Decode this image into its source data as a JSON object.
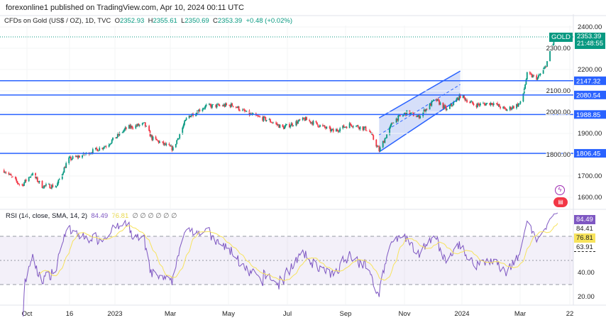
{
  "header": {
    "published": "forexonline1 published on TradingView.com, Apr 10, 2024 00:11 UTC"
  },
  "legend": {
    "symbol": "CFDs on Gold (US$ / OZ), 1D, TVC",
    "o_label": "O",
    "o": "2352.93",
    "h_label": "H",
    "h": "2355.61",
    "l_label": "L",
    "l": "2350.69",
    "c_label": "C",
    "c": "2353.39",
    "change": "+0.48 (+0.02%)"
  },
  "rsi_legend": {
    "title": "RSI (14, close, SMA, 14, 2)",
    "rsi": "84.49",
    "sma": "76.81",
    "empty": "∅ ∅ ∅ ∅ ∅ ∅"
  },
  "colors": {
    "up": "#089981",
    "down": "#f23645",
    "level": "#2962ff",
    "rsi": "#7e57c2",
    "rsi_sma": "#f7e35c",
    "channel_fill": "#c5d1f7"
  },
  "price_axis": {
    "ticks": [
      "2400.00",
      "2300.00",
      "2200.00",
      "2100.00",
      "2000.00",
      "1900.00",
      "1800.00",
      "1700.00",
      "1600.00"
    ]
  },
  "price_tags": {
    "symbol": "GOLD",
    "last": "2353.39",
    "countdown": "21:48:55"
  },
  "rsi_axis": {
    "ticks": [
      "40.00",
      "20.00"
    ],
    "tags": [
      "84.49",
      "84.41",
      "76.81",
      "63.91"
    ]
  },
  "time_axis": [
    "Oct",
    "16",
    "2023",
    "Mar",
    "May",
    "Jul",
    "Sep",
    "Nov",
    "2024",
    "Mar",
    "22"
  ],
  "chart_data": {
    "type": "candlestick",
    "ylim": [
      1600,
      2400
    ],
    "levels": [
      2147.32,
      2080.54,
      1988.85,
      1806.45
    ],
    "level_labels": [
      "2147.32",
      "2080.54",
      "1988.85",
      "1806.45"
    ],
    "channel": {
      "start": "2023-10-05",
      "end": "2023-12-29",
      "lower": [
        1813,
        2067
      ],
      "upper": [
        1973,
        2193
      ]
    },
    "path": [
      [
        "2022-09-07",
        1727
      ],
      [
        "2022-09-25",
        1653
      ],
      [
        "2022-10-06",
        1710
      ],
      [
        "2022-10-17",
        1653
      ],
      [
        "2022-11-01",
        1653
      ],
      [
        "2022-11-13",
        1777
      ],
      [
        "2022-11-30",
        1800
      ],
      [
        "2022-12-23",
        1843
      ],
      [
        "2023-01-14",
        1927
      ],
      [
        "2023-02-01",
        1943
      ],
      [
        "2023-02-09",
        1877
      ],
      [
        "2023-03-03",
        1827
      ],
      [
        "2023-03-18",
        1977
      ],
      [
        "2023-04-06",
        2027
      ],
      [
        "2023-05-05",
        2033
      ],
      [
        "2023-05-20",
        1993
      ],
      [
        "2023-06-12",
        1960
      ],
      [
        "2023-06-26",
        1927
      ],
      [
        "2023-07-19",
        1967
      ],
      [
        "2023-08-18",
        1910
      ],
      [
        "2023-09-05",
        1943
      ],
      [
        "2023-09-24",
        1917
      ],
      [
        "2023-10-05",
        1820
      ],
      [
        "2023-10-20",
        1960
      ],
      [
        "2023-11-04",
        2000
      ],
      [
        "2023-11-15",
        1977
      ],
      [
        "2023-12-03",
        2060
      ],
      [
        "2023-12-15",
        2010
      ],
      [
        "2023-12-29",
        2077
      ],
      [
        "2024-01-13",
        2033
      ],
      [
        "2024-02-01",
        2043
      ],
      [
        "2024-02-15",
        2010
      ],
      [
        "2024-03-02",
        2043
      ],
      [
        "2024-03-08",
        2177
      ],
      [
        "2024-03-19",
        2160
      ],
      [
        "2024-03-27",
        2210
      ],
      [
        "2024-04-05",
        2333
      ],
      [
        "2024-04-09",
        2353
      ]
    ],
    "rsi_levels": [
      70,
      50,
      30
    ]
  }
}
